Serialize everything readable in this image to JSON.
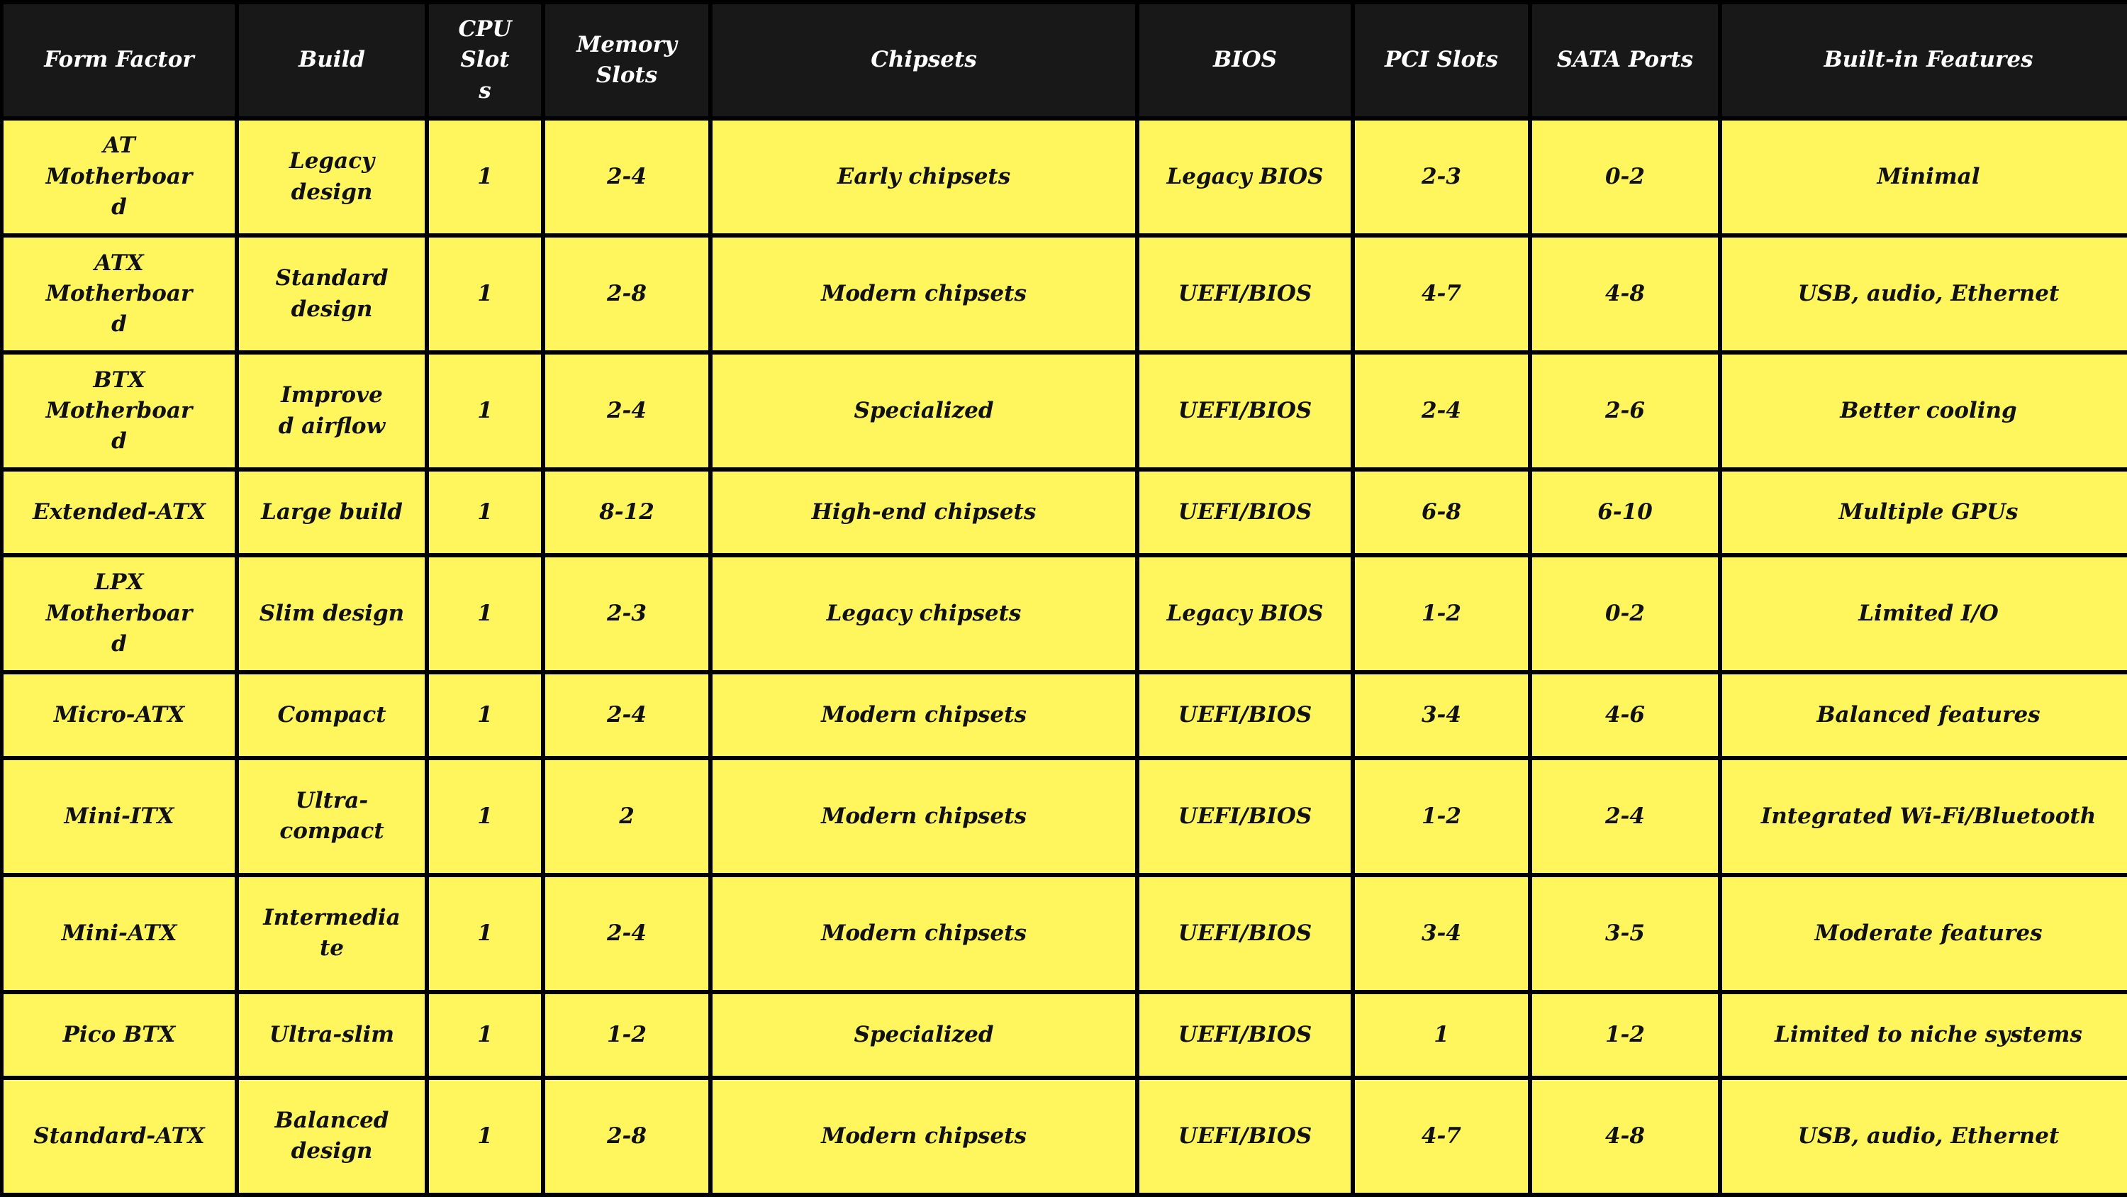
{
  "headers": [
    "Form Factor",
    "Build",
    "CPU Slots",
    "Memory Slots",
    "Chipsets",
    "BIOS",
    "PCI Slots",
    "SATA Ports",
    "Built-in Features"
  ],
  "rows": [
    [
      "AT Motherboard",
      "Legacy design",
      "1",
      "2-4",
      "Early chipsets",
      "Legacy BIOS",
      "2-3",
      "0-2",
      "Minimal"
    ],
    [
      "ATX Motherboard",
      "Standard design",
      "1",
      "2-8",
      "Modern chipsets",
      "UEFI/BIOS",
      "4-7",
      "4-8",
      "USB, audio, Ethernet"
    ],
    [
      "BTX Motherboard",
      "Improved airflow",
      "1",
      "2-4",
      "Specialized",
      "UEFI/BIOS",
      "2-4",
      "2-6",
      "Better cooling"
    ],
    [
      "Extended-ATX",
      "Large build",
      "1",
      "8-12",
      "High-end chipsets",
      "UEFI/BIOS",
      "6-8",
      "6-10",
      "Multiple GPUs"
    ],
    [
      "LPX Motherboard",
      "Slim design",
      "1",
      "2-3",
      "Legacy chipsets",
      "Legacy BIOS",
      "1-2",
      "0-2",
      "Limited I/O"
    ],
    [
      "Micro-ATX",
      "Compact",
      "1",
      "2-4",
      "Modern chipsets",
      "UEFI/BIOS",
      "3-4",
      "4-6",
      "Balanced features"
    ],
    [
      "Mini-ITX",
      "Ultra-compact",
      "1",
      "2",
      "Modern chipsets",
      "UEFI/BIOS",
      "1-2",
      "2-4",
      "Integrated Wi-Fi/Bluetooth"
    ],
    [
      "Mini-ATX",
      "Intermediate",
      "1",
      "2-4",
      "Modern chipsets",
      "UEFI/BIOS",
      "3-4",
      "3-5",
      "Moderate features"
    ],
    [
      "Pico BTX",
      "Ultra-slim",
      "1",
      "1-2",
      "Specialized",
      "UEFI/BIOS",
      "1",
      "1-2",
      "Limited to niche systems"
    ],
    [
      "Standard-ATX",
      "Balanced design",
      "1",
      "2-8",
      "Modern chipsets",
      "UEFI/BIOS",
      "4-7",
      "4-8",
      "USB, audio, Ethernet"
    ]
  ],
  "colors": {
    "header_bg": "#181818",
    "header_text": "#ffffff",
    "cell_bg": "#fff65e",
    "cell_text": "#111111",
    "border": "#000000"
  }
}
